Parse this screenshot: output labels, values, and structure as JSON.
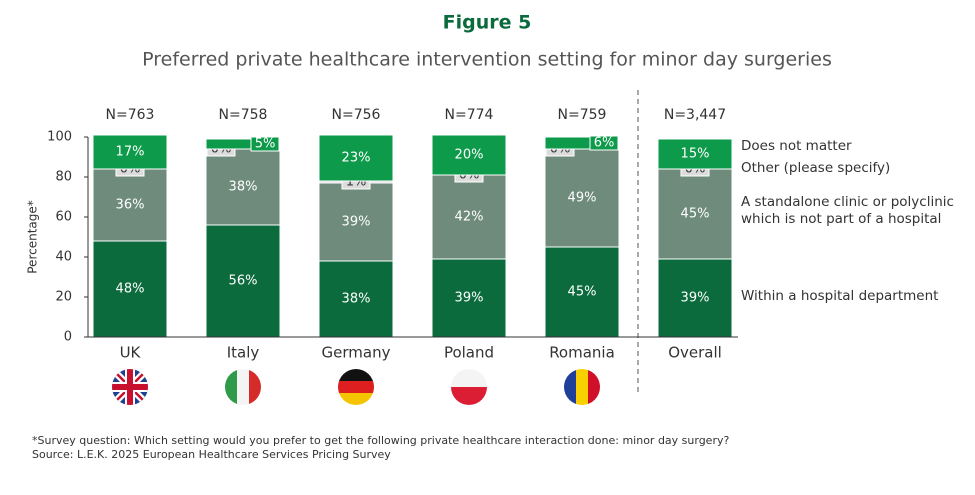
{
  "chart_data": {
    "type": "stacked-bar",
    "figure_label": "Figure 5",
    "title": "Preferred private healthcare intervention setting for minor day surgeries",
    "y_label": "Percentage*",
    "categories": [
      "UK",
      "Italy",
      "Germany",
      "Poland",
      "Romania",
      "Overall"
    ],
    "n_labels": [
      "N=763",
      "N=758",
      "N=756",
      "N=774",
      "N=759",
      "N=3,447"
    ],
    "series": [
      {
        "name": "Within a hospital department",
        "color": "#0b6b3c",
        "values": [
          48,
          56,
          38,
          39,
          45,
          39
        ],
        "value_labels": [
          "48%",
          "56%",
          "38%",
          "39%",
          "45%",
          "39%"
        ]
      },
      {
        "name": "A standalone clinic or polyclinic which is not part of a hospital",
        "color": "#6e8b7c",
        "values": [
          36,
          38,
          39,
          42,
          49,
          45
        ],
        "value_labels": [
          "36%",
          "38%",
          "39%",
          "42%",
          "49%",
          "45%"
        ]
      },
      {
        "name": "Other (please specify)",
        "color": "#dcdcdc",
        "values": [
          0,
          0,
          1,
          0,
          0,
          0
        ],
        "value_labels": [
          "0%",
          "0%",
          "1%",
          "0%",
          "0%",
          "0%"
        ]
      },
      {
        "name": "Does not matter",
        "color": "#0d9a4a",
        "values": [
          17,
          5,
          23,
          20,
          6,
          15
        ],
        "value_labels": [
          "17%",
          "5%",
          "23%",
          "20%",
          "6%",
          "15%"
        ]
      }
    ],
    "ylim": [
      0,
      100
    ],
    "yticks": [
      0,
      20,
      40,
      60,
      80,
      100
    ],
    "footnotes": [
      "*Survey question: Which setting would you prefer to get the following private healthcare interaction done: minor day surgery?",
      "Source: L.E.K. 2025 European Healthcare Services Pricing Survey"
    ]
  }
}
